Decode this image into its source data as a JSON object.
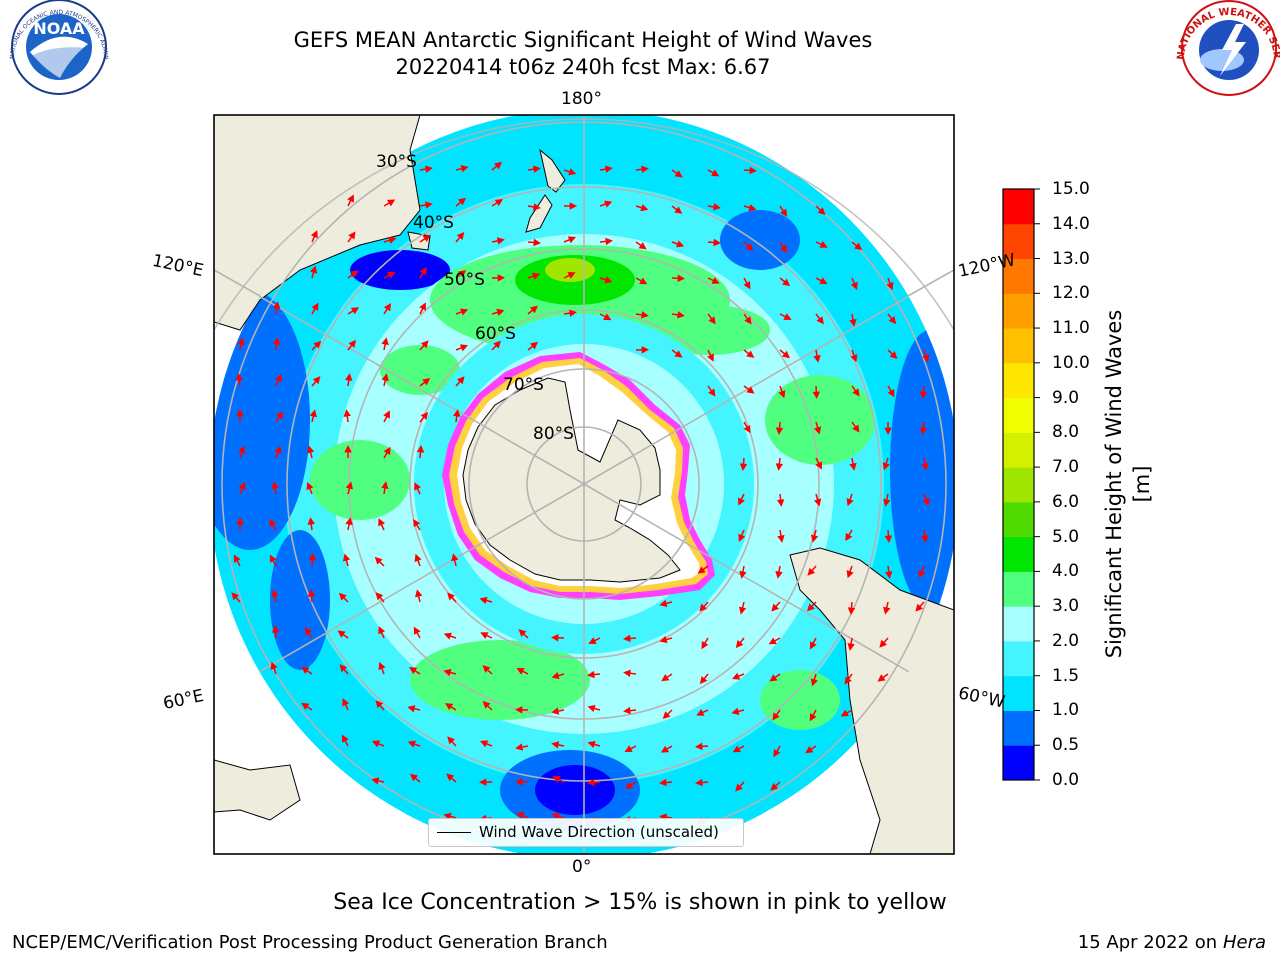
{
  "header": {
    "title_line1": "GEFS MEAN Antarctic Significant Height of Wind Waves",
    "title_line2": "20220414 t06z 240h fcst   Max: 6.67"
  },
  "logos": {
    "noaa_text": "NOAA",
    "noaa_ring_text": "NATIONAL OCEANIC AND ATMOSPHERIC ADMINISTRATION · U.S. DEPARTMENT OF COMMERCE",
    "nws_ring_text": "NATIONAL WEATHER SERVICE"
  },
  "map": {
    "projection": "south-polar stereographic",
    "longitude_labels": {
      "top": "180°",
      "bottom": "0°",
      "left_upper": "120°E",
      "left_lower": "60°E",
      "right_upper": "120°W",
      "right_lower": "60°W"
    },
    "latitude_labels": [
      "30°S",
      "40°S",
      "50°S",
      "60°S",
      "70°S",
      "80°S"
    ],
    "legend_label": "Wind Wave Direction (unscaled)",
    "colors": {
      "land": "#eeecdc",
      "ice": "#ffffff",
      "ice_edge": [
        "#ff40ff",
        "#ffb0ff",
        "#ffd040"
      ],
      "graticule": "#b4b4b4",
      "arrow": "#ff0000"
    }
  },
  "colorbar": {
    "label": "Significant Height of Wind Waves [m]",
    "ticks": [
      "0.0",
      "0.5",
      "1.0",
      "1.5",
      "2.0",
      "3.0",
      "4.0",
      "5.0",
      "6.0",
      "7.0",
      "8.0",
      "9.0",
      "10.0",
      "11.0",
      "12.0",
      "13.0",
      "14.0",
      "15.0"
    ],
    "colors": [
      "#0000ff",
      "#0070ff",
      "#00e4ff",
      "#44f4ff",
      "#a8ffff",
      "#50ff80",
      "#00e600",
      "#50dc00",
      "#a0e600",
      "#d2f000",
      "#f0ff00",
      "#ffe600",
      "#ffc000",
      "#ffa000",
      "#ff7800",
      "#ff4600",
      "#ff0000"
    ]
  },
  "footer": {
    "note": "Sea Ice Concentration > 15% is shown in pink to yellow",
    "credit": "NCEP/EMC/Verification Post Processing Product Generation Branch",
    "date": "15 Apr 2022 on",
    "machine": "Hera"
  }
}
